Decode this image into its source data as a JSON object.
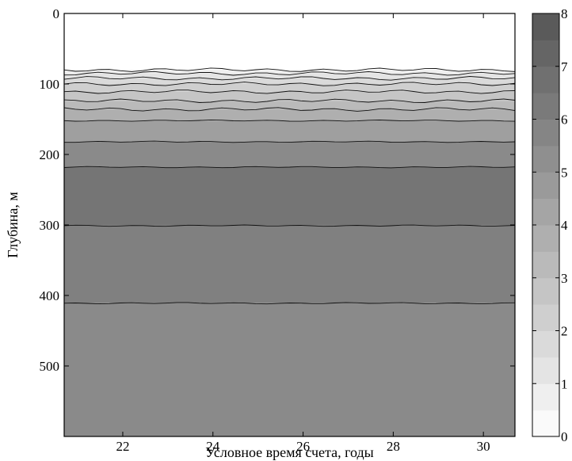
{
  "chart_data": {
    "type": "contour",
    "title": "",
    "xlabel": "Условное время счета, годы",
    "ylabel": "Глубина, м",
    "xlim": [
      20.7,
      30.7
    ],
    "ylim": [
      0,
      600
    ],
    "y_reversed": true,
    "x_ticks": [
      "22",
      "24",
      "26",
      "28",
      "30"
    ],
    "x_tick_values": [
      22,
      24,
      26,
      28,
      30
    ],
    "y_ticks": [
      "0",
      "100",
      "200",
      "300",
      "400",
      "500"
    ],
    "y_tick_values": [
      0,
      100,
      200,
      300,
      400,
      500
    ],
    "colorbar": {
      "range": [
        0,
        8
      ],
      "ticks": [
        "0",
        "1",
        "2",
        "3",
        "4",
        "5",
        "6",
        "7",
        "8"
      ],
      "colormap": "gray-reversed"
    },
    "contour_levels": [
      {
        "value": 0.5,
        "depth": 80
      },
      {
        "value": 1,
        "depth": 85
      },
      {
        "value": 1.5,
        "depth": 92
      },
      {
        "value": 2,
        "depth": 100
      },
      {
        "value": 2.5,
        "depth": 111
      },
      {
        "value": 3,
        "depth": 124
      },
      {
        "value": 3.5,
        "depth": 136
      },
      {
        "value": 4,
        "depth": 152
      },
      {
        "value": 5,
        "depth": 182
      },
      {
        "value": 6,
        "depth": 218
      },
      {
        "value": 7,
        "depth": 301
      },
      {
        "value": 6,
        "depth": 411
      }
    ],
    "bands": [
      {
        "from_depth": 80,
        "to_depth": 85,
        "value": 0.75
      },
      {
        "from_depth": 85,
        "to_depth": 92,
        "value": 1.25
      },
      {
        "from_depth": 92,
        "to_depth": 100,
        "value": 1.75
      },
      {
        "from_depth": 100,
        "to_depth": 111,
        "value": 2.25
      },
      {
        "from_depth": 111,
        "to_depth": 124,
        "value": 2.75
      },
      {
        "from_depth": 124,
        "to_depth": 136,
        "value": 3.25
      },
      {
        "from_depth": 136,
        "to_depth": 152,
        "value": 3.75
      },
      {
        "from_depth": 152,
        "to_depth": 182,
        "value": 4.5
      },
      {
        "from_depth": 182,
        "to_depth": 218,
        "value": 5.5
      },
      {
        "from_depth": 218,
        "to_depth": 301,
        "value": 6.5
      },
      {
        "from_depth": 301,
        "to_depth": 411,
        "value": 6.0
      },
      {
        "from_depth": 411,
        "to_depth": 600,
        "value": 5.5
      }
    ]
  }
}
